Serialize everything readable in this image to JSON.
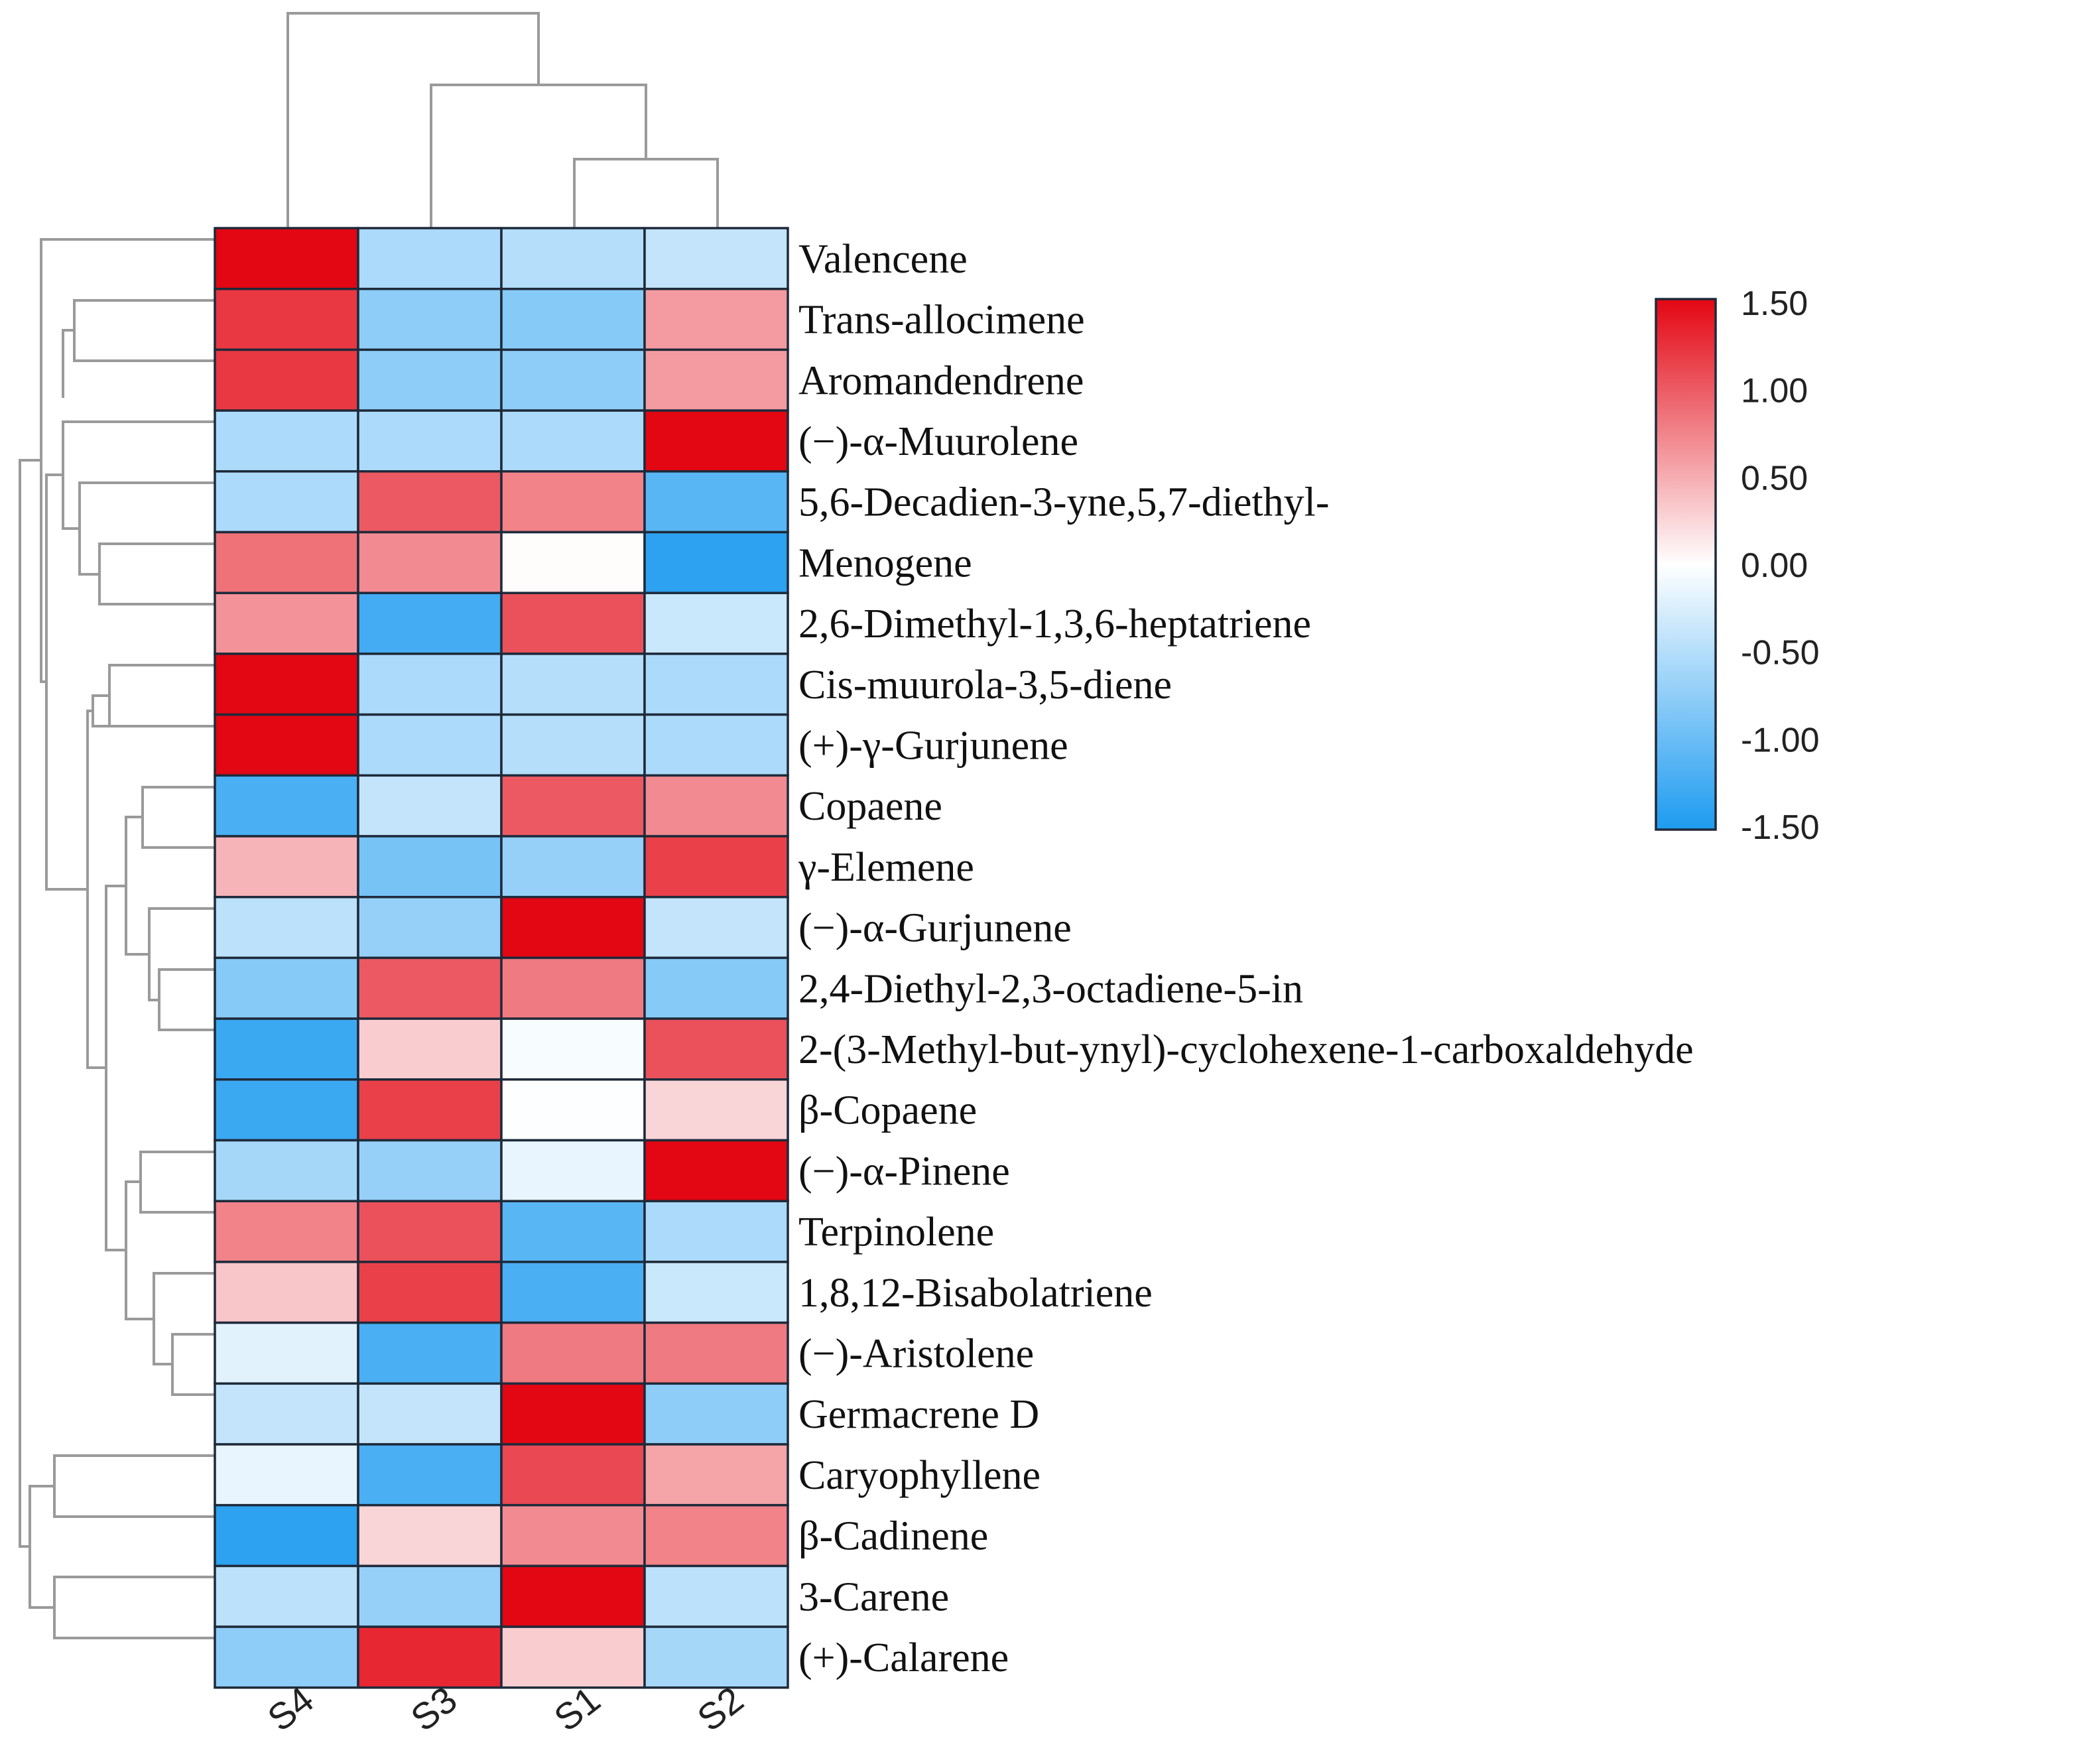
{
  "chart_data": {
    "type": "heatmap",
    "title": "",
    "columns": [
      "S4",
      "S3",
      "S1",
      "S2"
    ],
    "rows": [
      "Valencene",
      "Trans-allocimene",
      "Aromandendrene",
      "(−)-α-Muurolene",
      "5,6-Decadien-3-yne,5,7-diethyl-",
      "Menogene",
      "2,6-Dimethyl-1,3,6-heptatriene",
      "Cis-muurola-3,5-diene",
      "(+)-γ-Gurjunene",
      "Copaene",
      "γ-Elemene",
      "(−)-α-Gurjunene",
      "2,4-Diethyl-2,3-octadiene-5-in",
      "2-(3-Methyl-but-ynyl)-cyclohexene-1-carboxaldehyde",
      "β-Copaene",
      "(−)-α-Pinene",
      "Terpinolene",
      "1,8,12-Bisabolatriene",
      "(−)-Aristolene",
      "Germacrene D",
      "Caryophyllene",
      "β-Cadinene",
      "3-Carene",
      "(+)-Calarene"
    ],
    "values": [
      [
        1.5,
        -0.55,
        -0.5,
        -0.4
      ],
      [
        1.2,
        -0.75,
        -0.8,
        0.6
      ],
      [
        1.2,
        -0.75,
        -0.75,
        0.6
      ],
      [
        -0.55,
        -0.55,
        -0.55,
        1.5
      ],
      [
        -0.55,
        1.0,
        0.75,
        -1.1
      ],
      [
        0.85,
        0.7,
        0.02,
        -1.4
      ],
      [
        0.65,
        -1.25,
        1.05,
        -0.35
      ],
      [
        1.5,
        -0.55,
        -0.5,
        -0.55
      ],
      [
        1.5,
        -0.55,
        -0.5,
        -0.55
      ],
      [
        -1.2,
        -0.4,
        1.0,
        0.7
      ],
      [
        0.45,
        -0.9,
        -0.7,
        1.15
      ],
      [
        -0.45,
        -0.7,
        1.5,
        -0.4
      ],
      [
        -0.8,
        1.0,
        0.8,
        -0.8
      ],
      [
        -1.3,
        0.3,
        -0.05,
        1.05
      ],
      [
        -1.3,
        1.15,
        -0.02,
        0.25
      ],
      [
        -0.6,
        -0.7,
        -0.15,
        1.5
      ],
      [
        0.75,
        1.05,
        -1.1,
        -0.55
      ],
      [
        0.35,
        1.15,
        -1.2,
        -0.35
      ],
      [
        -0.2,
        -1.2,
        0.8,
        0.8
      ],
      [
        -0.4,
        -0.4,
        1.5,
        -0.75
      ],
      [
        -0.15,
        -1.2,
        1.1,
        0.55
      ],
      [
        -1.4,
        0.25,
        0.7,
        0.75
      ],
      [
        -0.45,
        -0.7,
        1.5,
        -0.45
      ],
      [
        -0.75,
        1.3,
        0.3,
        -0.6
      ]
    ],
    "colorscale": {
      "low": "#1d9bf0",
      "mid": "#ffffff",
      "high": "#e30613",
      "min": -1.5,
      "max": 1.5,
      "ticks": [
        "1.50",
        "1.00",
        "0.50",
        "0.00",
        "-0.50",
        "-1.00",
        "-1.50"
      ]
    },
    "legend_position": "right",
    "grid": false
  }
}
